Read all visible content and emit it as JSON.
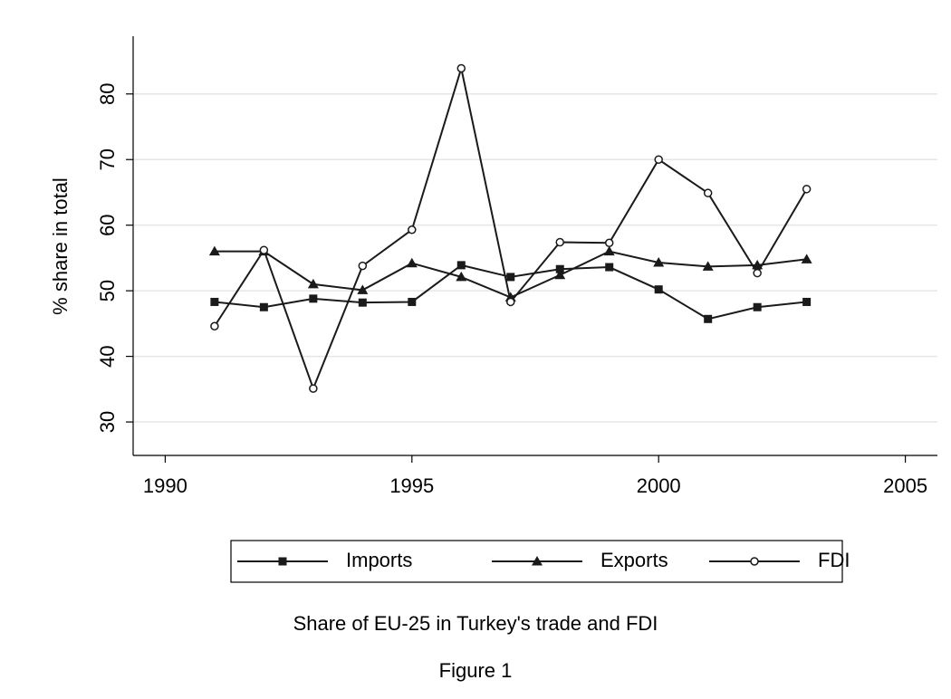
{
  "chart_data": {
    "type": "line",
    "title": "Share of EU-25 in Turkey's trade and FDI",
    "caption": "Figure 1",
    "y_label": "% share in total",
    "x": [
      1991,
      1992,
      1993,
      1994,
      1995,
      1996,
      1997,
      1998,
      1999,
      2000,
      2001,
      2002,
      2003
    ],
    "series": [
      {
        "name": "Imports",
        "color": "#1a1a1a",
        "marker": "square",
        "values": [
          48.3,
          47.5,
          48.8,
          48.2,
          48.3,
          53.9,
          52.1,
          53.3,
          53.6,
          50.2,
          45.7,
          47.5,
          48.3
        ]
      },
      {
        "name": "Exports",
        "color": "#1a1a1a",
        "marker": "triangle",
        "values": [
          56.0,
          56.0,
          51.0,
          50.1,
          54.2,
          52.1,
          49.0,
          52.4,
          56.0,
          54.3,
          53.7,
          53.9,
          54.8
        ]
      },
      {
        "name": "FDI",
        "color": "#1a1a1a",
        "marker": "circle",
        "values": [
          44.6,
          56.2,
          35.1,
          53.8,
          59.3,
          83.9,
          48.3,
          57.4,
          57.3,
          70.0,
          64.9,
          52.7,
          65.5
        ]
      }
    ],
    "xlim": [
      1989.35,
      2005.65
    ],
    "xticks": [
      1990,
      1995,
      2000,
      2005
    ],
    "ylim": [
      24.9,
      88.8
    ],
    "yticks": [
      30,
      40,
      50,
      60,
      70,
      80
    ],
    "grid": true,
    "legend": "bottom"
  }
}
